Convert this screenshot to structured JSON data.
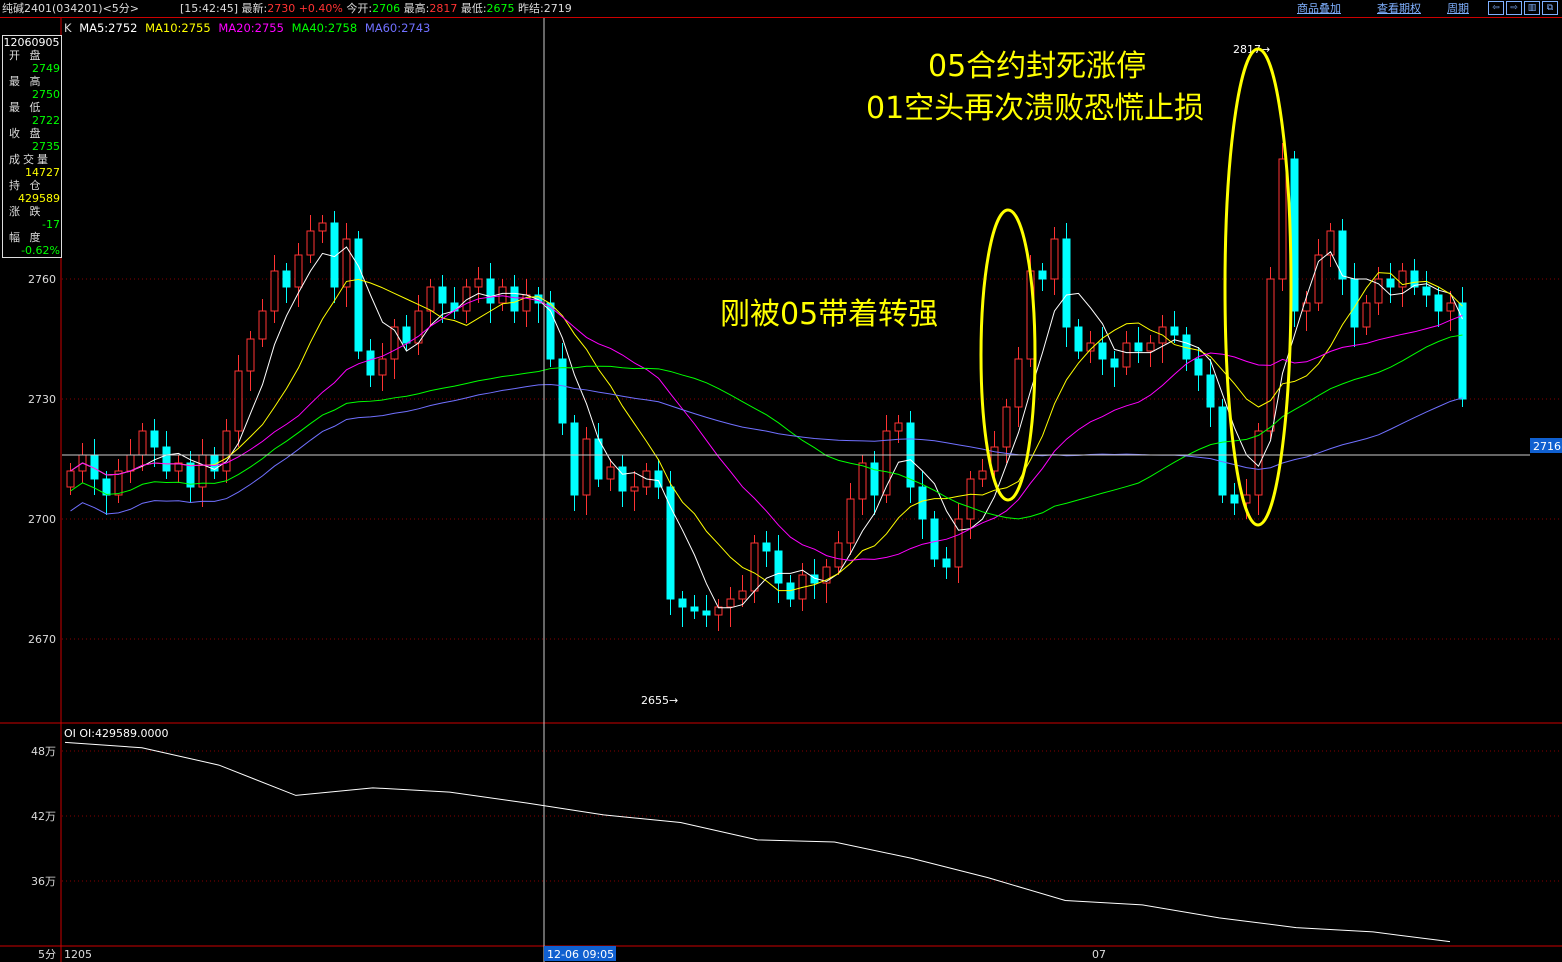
{
  "header": {
    "symbol": "纯碱2401",
    "code": "(034201)",
    "period": "<5分>",
    "time": "[15:42:45]",
    "latest_label": "最新:",
    "latest": "2730",
    "change_pct": "+0.40%",
    "open_label": "今开:",
    "open": "2706",
    "high_label": "最高:",
    "high": "2817",
    "low_label": "最低:",
    "low": "2675",
    "prev_settle_label": "昨结:",
    "prev_settle": "2719",
    "links": [
      "商品叠加",
      "查看期权",
      "周期"
    ],
    "buttons": [
      "⇦",
      "⇨",
      "▥",
      "⧉"
    ]
  },
  "legend": {
    "k": "K",
    "ma5": "MA5:2752",
    "ma10": "MA10:2755",
    "ma20": "MA20:2755",
    "ma40": "MA40:2758",
    "ma60": "MA60:2743"
  },
  "info_panel": {
    "date": "12060905",
    "rows": [
      {
        "label": "开 盘",
        "value": "2749",
        "color": "#00ff00"
      },
      {
        "label": "最 高",
        "value": "2750",
        "color": "#00ff00"
      },
      {
        "label": "最 低",
        "value": "2722",
        "color": "#00ff00"
      },
      {
        "label": "收 盘",
        "value": "2735",
        "color": "#00ff00"
      },
      {
        "label": "成交量",
        "value": "14727",
        "color": "#ffff00"
      },
      {
        "label": "持 仓",
        "value": "429589",
        "color": "#ffff00"
      },
      {
        "label": "涨 跌",
        "value": "-17",
        "color": "#00ff00"
      },
      {
        "label": "幅 度",
        "value": "-0.62%",
        "color": "#00ff00"
      }
    ]
  },
  "annotations": {
    "line1": "05合约封死涨停",
    "line2": "01空头再次溃败恐慌止损",
    "middle": "刚被05带着转强"
  },
  "markers": {
    "low": "2655→",
    "high": "2817→",
    "crosshair_price": "2716"
  },
  "chart_data": [
    {
      "type": "candlestick",
      "ylim": [
        2650,
        2818
      ],
      "yticks": [
        2670,
        2700,
        2730,
        2760
      ],
      "close": [
        2712,
        2716,
        2710,
        2706,
        2712,
        2716,
        2722,
        2718,
        2712,
        2714,
        2708,
        2716,
        2712,
        2722,
        2737,
        2745,
        2752,
        2762,
        2758,
        2766,
        2772,
        2774,
        2758,
        2770,
        2742,
        2736,
        2740,
        2748,
        2744,
        2752,
        2758,
        2754,
        2752,
        2758,
        2760,
        2754,
        2758,
        2752,
        2756,
        2754,
        2740,
        2724,
        2706,
        2720,
        2710,
        2713,
        2707,
        2708,
        2712,
        2708,
        2680,
        2678,
        2677,
        2676,
        2678,
        2680,
        2682,
        2694,
        2692,
        2684,
        2680,
        2686,
        2684,
        2688,
        2694,
        2705,
        2714,
        2706,
        2722,
        2724,
        2708,
        2700,
        2690,
        2688,
        2700,
        2710,
        2712,
        2718,
        2728,
        2740,
        2762,
        2760,
        2770,
        2748,
        2742,
        2744,
        2740,
        2738,
        2744,
        2742,
        2744,
        2748,
        2746,
        2740,
        2736,
        2728,
        2706,
        2704,
        2706,
        2722,
        2760,
        2790,
        2752,
        2754,
        2766,
        2772,
        2760,
        2748,
        2754,
        2760,
        2758,
        2762,
        2758,
        2756,
        2752,
        2754,
        2730
      ],
      "ma_colors": {
        "ma5": "#ffffff",
        "ma10": "#ffff00",
        "ma20": "#ff00ff",
        "ma40": "#00ff00",
        "ma60": "#7070ff"
      },
      "up_color": "#ff3333",
      "down_color": "#00ffff"
    },
    {
      "type": "line",
      "title": "OI",
      "label": "OI:429589.0000",
      "yticks": [
        "48万",
        "42万",
        "36万"
      ],
      "ylim_wan": [
        28,
        50
      ],
      "values_wan": [
        48.8,
        48.3,
        46.7,
        43.9,
        44.6,
        44.2,
        43.2,
        42.1,
        41.4,
        39.8,
        39.6,
        38.1,
        36.3,
        34.2,
        33.8,
        32.6,
        31.7,
        31.3,
        30.4
      ]
    }
  ],
  "xaxis": {
    "period": "5分",
    "labels": [
      "1205",
      "12-06 09:05",
      "07"
    ]
  }
}
